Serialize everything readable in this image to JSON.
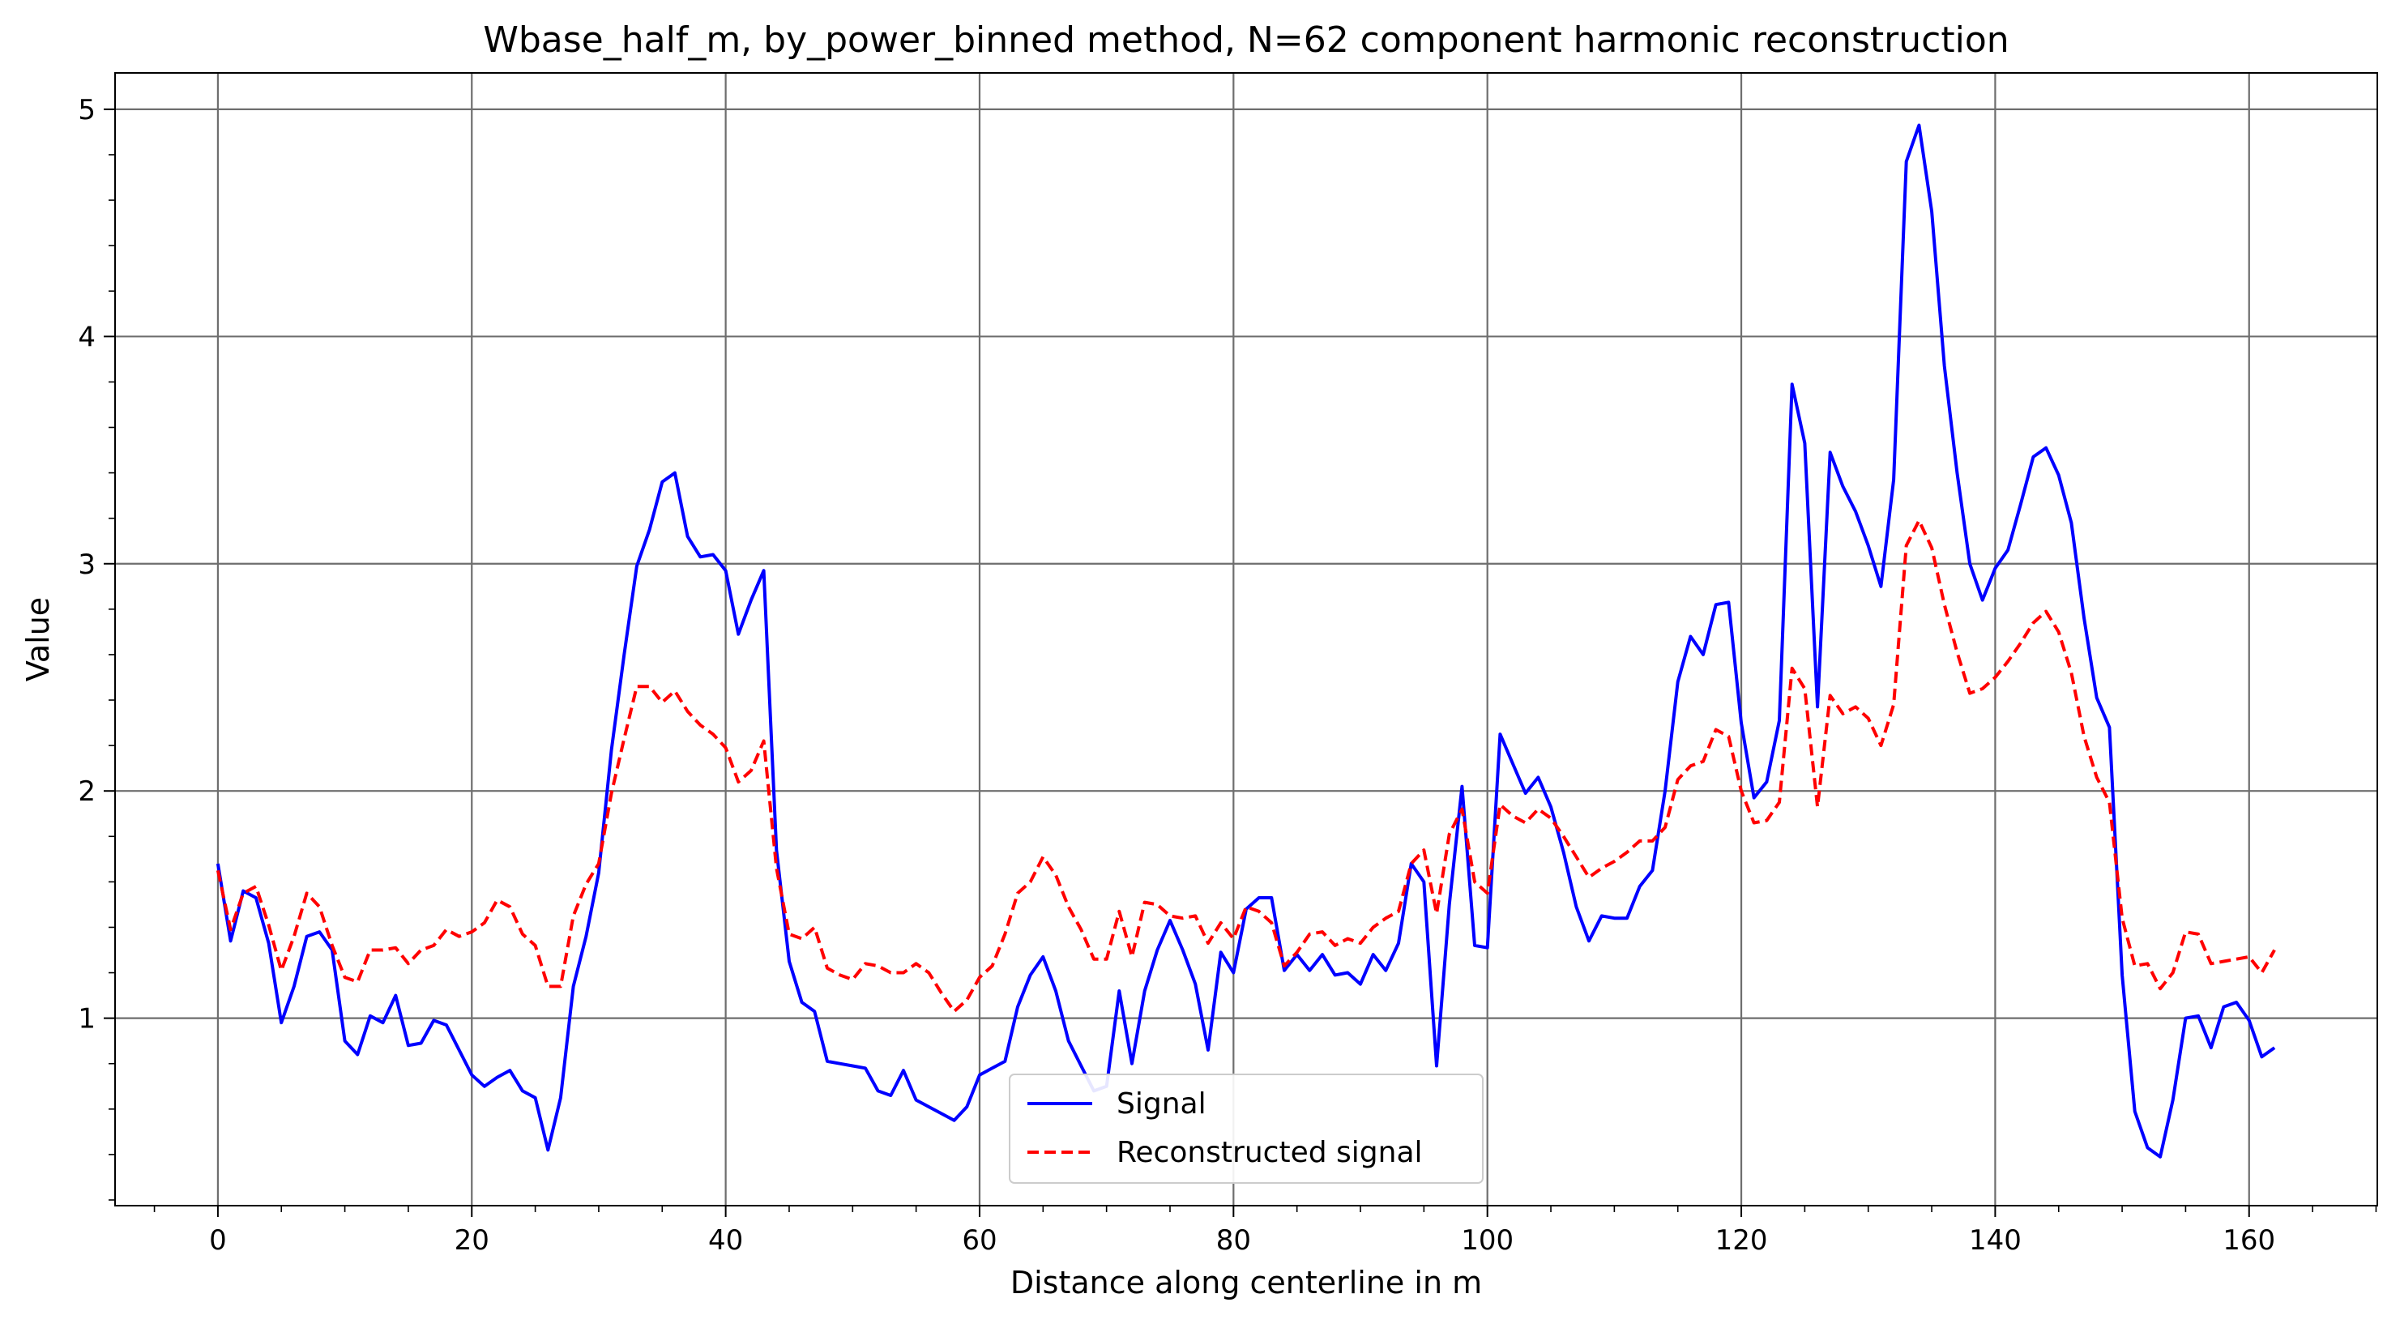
{
  "chart_data": {
    "type": "line",
    "title": "Wbase_half_m, by_power_binned method, N=62 component harmonic reconstruction",
    "xlabel": "Distance along centerline in m",
    "ylabel": "Value",
    "xlim": [
      -8.1,
      170.1
    ],
    "ylim": [
      0.175,
      5.16
    ],
    "x_ticks": [
      0,
      20,
      40,
      60,
      80,
      100,
      120,
      140,
      160
    ],
    "y_ticks": [
      1,
      2,
      3,
      4,
      5
    ],
    "grid": true,
    "legend_position": "lower-center",
    "series": [
      {
        "name": "Signal",
        "color": "#0000ff",
        "style": "solid",
        "values": [
          1.68,
          1.34,
          1.56,
          1.53,
          1.33,
          0.98,
          1.14,
          1.36,
          1.38,
          1.3,
          0.9,
          0.84,
          1.01,
          0.98,
          1.1,
          0.88,
          0.89,
          0.99,
          0.97,
          0.86,
          0.75,
          0.7,
          0.74,
          0.77,
          0.68,
          0.65,
          0.42,
          0.65,
          1.14,
          1.36,
          1.64,
          2.18,
          2.6,
          2.99,
          3.15,
          3.36,
          3.4,
          3.12,
          3.03,
          3.04,
          2.97,
          2.69,
          2.84,
          2.97,
          1.74,
          1.25,
          1.07,
          1.03,
          0.81,
          0.8,
          0.79,
          0.78,
          0.68,
          0.66,
          0.77,
          0.64,
          0.61,
          0.58,
          0.55,
          0.61,
          0.75,
          0.78,
          0.81,
          1.05,
          1.19,
          1.27,
          1.12,
          0.9,
          0.79,
          0.68,
          0.7,
          1.12,
          0.8,
          1.12,
          1.3,
          1.43,
          1.3,
          1.15,
          0.86,
          1.29,
          1.2,
          1.48,
          1.53,
          1.53,
          1.21,
          1.28,
          1.21,
          1.28,
          1.19,
          1.2,
          1.15,
          1.28,
          1.21,
          1.33,
          1.68,
          1.6,
          0.79,
          1.5,
          2.02,
          1.32,
          1.31,
          2.25,
          2.12,
          1.99,
          2.06,
          1.93,
          1.73,
          1.49,
          1.34,
          1.45,
          1.44,
          1.44,
          1.58,
          1.65,
          2.0,
          2.48,
          2.68,
          2.6,
          2.82,
          2.83,
          2.3,
          1.97,
          2.04,
          2.31,
          3.79,
          3.53,
          2.37,
          3.49,
          3.34,
          3.23,
          3.08,
          2.9,
          3.37,
          4.77,
          4.93,
          4.55,
          3.87,
          3.4,
          3.0,
          2.84,
          2.98,
          3.06,
          3.26,
          3.47,
          3.51,
          3.39,
          3.18,
          2.76,
          2.41,
          2.28,
          1.19,
          0.59,
          0.43,
          0.39,
          0.64,
          1.0,
          1.01,
          0.87,
          1.05,
          1.07,
          0.99,
          0.83,
          0.87
        ]
      },
      {
        "name": "Reconstructed signal",
        "color": "#ff0000",
        "style": "dashed",
        "values": [
          1.65,
          1.39,
          1.55,
          1.58,
          1.41,
          1.21,
          1.36,
          1.55,
          1.49,
          1.32,
          1.18,
          1.16,
          1.3,
          1.3,
          1.31,
          1.24,
          1.3,
          1.32,
          1.39,
          1.36,
          1.38,
          1.42,
          1.52,
          1.49,
          1.37,
          1.32,
          1.14,
          1.14,
          1.45,
          1.59,
          1.68,
          1.99,
          2.23,
          2.46,
          2.46,
          2.39,
          2.44,
          2.35,
          2.29,
          2.25,
          2.19,
          2.04,
          2.09,
          2.22,
          1.66,
          1.37,
          1.35,
          1.4,
          1.22,
          1.19,
          1.17,
          1.24,
          1.23,
          1.2,
          1.2,
          1.24,
          1.2,
          1.11,
          1.03,
          1.08,
          1.18,
          1.23,
          1.37,
          1.55,
          1.6,
          1.71,
          1.63,
          1.49,
          1.39,
          1.26,
          1.26,
          1.47,
          1.27,
          1.51,
          1.5,
          1.45,
          1.44,
          1.45,
          1.33,
          1.42,
          1.35,
          1.49,
          1.47,
          1.42,
          1.23,
          1.29,
          1.37,
          1.38,
          1.32,
          1.35,
          1.33,
          1.4,
          1.44,
          1.47,
          1.68,
          1.74,
          1.46,
          1.81,
          1.92,
          1.6,
          1.55,
          1.94,
          1.89,
          1.86,
          1.92,
          1.88,
          1.8,
          1.71,
          1.62,
          1.66,
          1.69,
          1.73,
          1.78,
          1.78,
          1.84,
          2.05,
          2.11,
          2.13,
          2.27,
          2.24,
          2.0,
          1.86,
          1.87,
          1.95,
          2.54,
          2.45,
          1.93,
          2.42,
          2.34,
          2.37,
          2.32,
          2.2,
          2.38,
          3.08,
          3.19,
          3.07,
          2.82,
          2.61,
          2.43,
          2.45,
          2.5,
          2.57,
          2.65,
          2.74,
          2.79,
          2.7,
          2.52,
          2.24,
          2.06,
          1.95,
          1.44,
          1.23,
          1.24,
          1.13,
          1.2,
          1.38,
          1.37,
          1.24,
          1.25,
          1.26,
          1.27,
          1.2,
          1.3
        ]
      }
    ]
  }
}
